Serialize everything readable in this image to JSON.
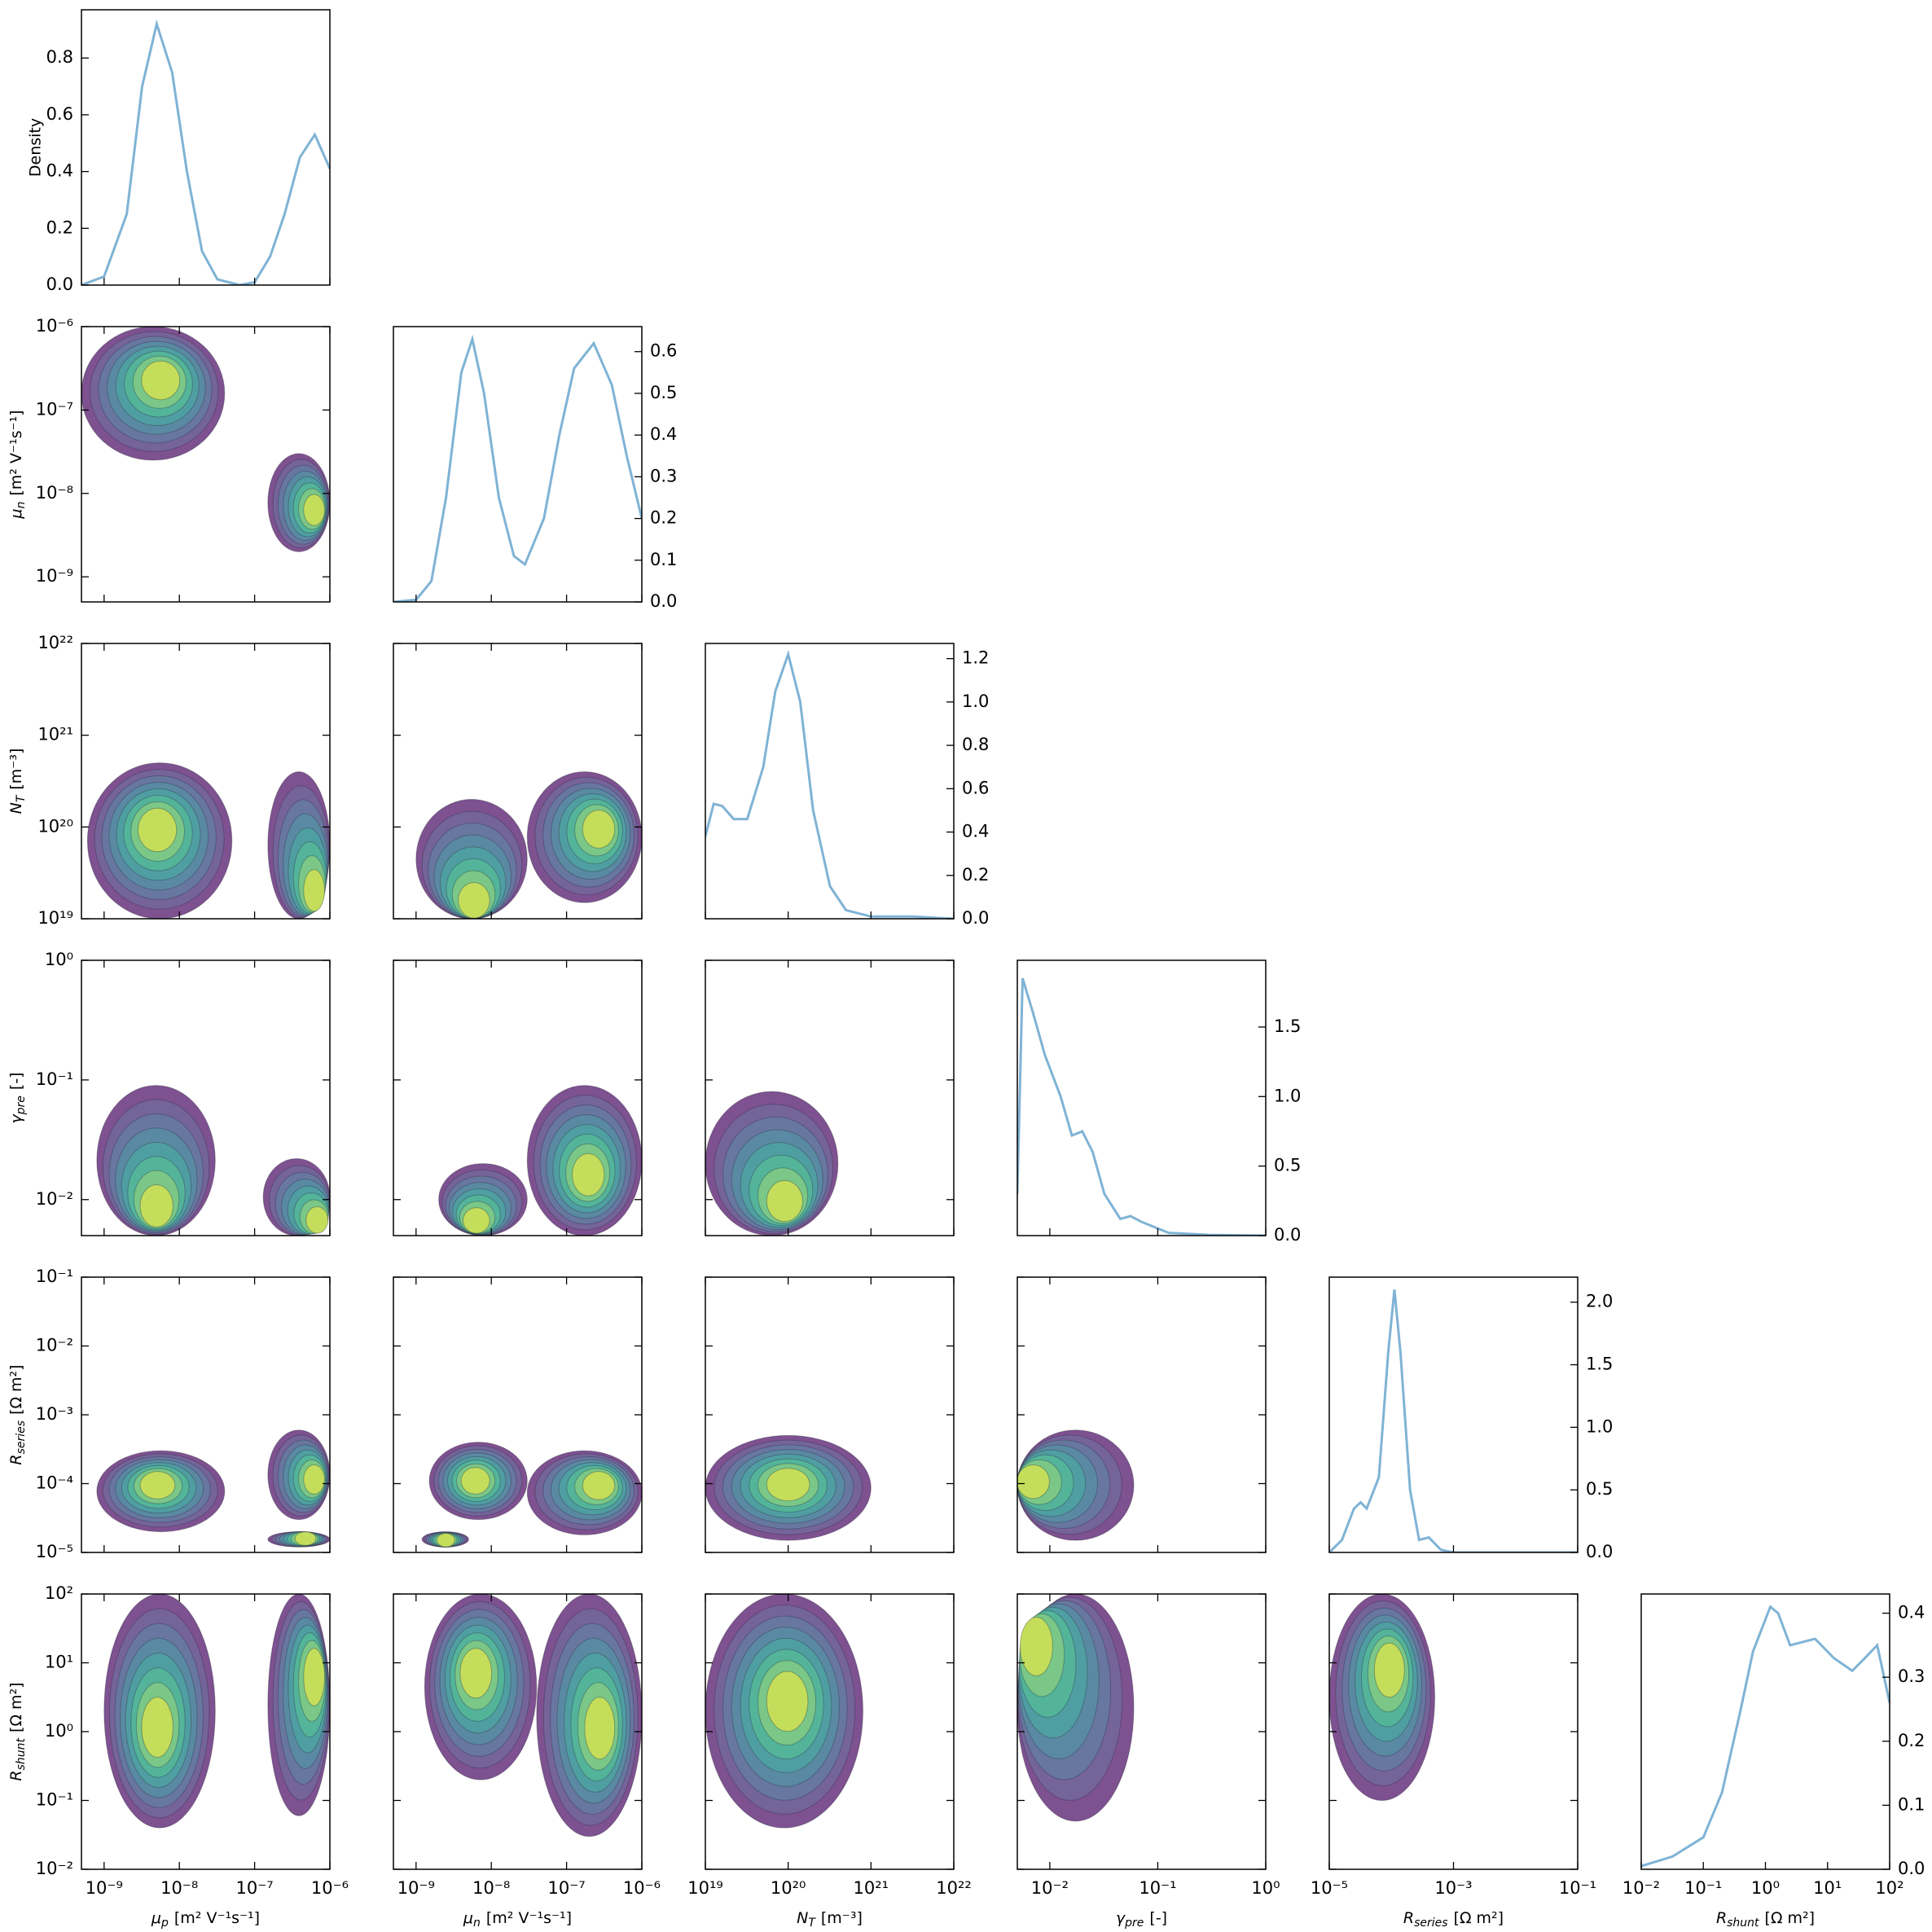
{
  "chart_data": {
    "type": "corner",
    "log_scale": true,
    "density_label": "Density",
    "line_color": "#7fb3d5",
    "contour_colors": [
      "#7e5190",
      "#74649a",
      "#6777a0",
      "#5a8aa3",
      "#4f9ea2",
      "#53b49a",
      "#7ac787",
      "#c4de5c"
    ],
    "variables": [
      {
        "symbol": "μ",
        "sub": "p",
        "unit": "[m² V⁻¹s⁻¹]",
        "lim": [
          5e-10,
          1e-06
        ],
        "ticks": [
          {
            "value": 1e-09,
            "label": "10⁻⁹"
          },
          {
            "value": 1e-08,
            "label": "10⁻⁸"
          },
          {
            "value": 1e-07,
            "label": "10⁻⁷"
          },
          {
            "value": 1e-06,
            "label": "10⁻⁶"
          }
        ]
      },
      {
        "symbol": "μ",
        "sub": "n",
        "unit": "[m² V⁻¹s⁻¹]",
        "lim": [
          5e-10,
          1e-06
        ],
        "ticks": [
          {
            "value": 1e-09,
            "label": "10⁻⁹"
          },
          {
            "value": 1e-08,
            "label": "10⁻⁸"
          },
          {
            "value": 1e-07,
            "label": "10⁻⁷"
          },
          {
            "value": 1e-06,
            "label": "10⁻⁶"
          }
        ]
      },
      {
        "symbol": "N",
        "sub": "T",
        "unit": "[m⁻³]",
        "lim": [
          1e+19,
          1e+22
        ],
        "ticks": [
          {
            "value": 1e+19,
            "label": "10¹⁹"
          },
          {
            "value": 1e+20,
            "label": "10²⁰"
          },
          {
            "value": 1e+21,
            "label": "10²¹"
          },
          {
            "value": 1e+22,
            "label": "10²²"
          }
        ]
      },
      {
        "symbol": "γ",
        "sub": "pre",
        "unit": "[-]",
        "lim": [
          0.005,
          1
        ],
        "ticks": [
          {
            "value": 0.01,
            "label": "10⁻²"
          },
          {
            "value": 0.1,
            "label": "10⁻¹"
          },
          {
            "value": 1,
            "label": "10⁰"
          }
        ]
      },
      {
        "symbol": "R",
        "sub": "series",
        "unit": "[Ω m²]",
        "lim": [
          1e-05,
          0.1
        ],
        "ticks": [
          {
            "value": 1e-05,
            "label": "10⁻⁵"
          },
          {
            "value": 0.0001,
            "label": "10⁻⁴"
          },
          {
            "value": 0.001,
            "label": "10⁻³"
          },
          {
            "value": 0.01,
            "label": "10⁻²"
          },
          {
            "value": 0.1,
            "label": "10⁻¹"
          }
        ],
        "xticks": [
          {
            "value": 1e-05,
            "label": "10⁻⁵"
          },
          {
            "value": 0.001,
            "label": "10⁻³"
          },
          {
            "value": 0.1,
            "label": "10⁻¹"
          }
        ]
      },
      {
        "symbol": "R",
        "sub": "shunt",
        "unit": "[Ω m²]",
        "lim": [
          0.01,
          100
        ],
        "ticks": [
          {
            "value": 0.01,
            "label": "10⁻²"
          },
          {
            "value": 0.1,
            "label": "10⁻¹"
          },
          {
            "value": 1,
            "label": "10⁰"
          },
          {
            "value": 10,
            "label": "10¹"
          },
          {
            "value": 100,
            "label": "10²"
          }
        ]
      }
    ],
    "diagonal": [
      {
        "x": [
          5e-10,
          1e-09,
          2e-09,
          3.2e-09,
          5e-09,
          8e-09,
          1.26e-08,
          2e-08,
          3.2e-08,
          6.3e-08,
          1e-07,
          1.6e-07,
          2.5e-07,
          4e-07,
          6.3e-07,
          1e-06
        ],
        "values": [
          0.0,
          0.03,
          0.25,
          0.7,
          0.92,
          0.75,
          0.4,
          0.12,
          0.02,
          0.0,
          0.01,
          0.1,
          0.25,
          0.45,
          0.53,
          0.41
        ],
        "ylim": [
          0,
          0.97
        ],
        "yticks": [
          {
            "value": 0,
            "label": "0.0"
          },
          {
            "value": 0.2,
            "label": "0.2"
          },
          {
            "value": 0.4,
            "label": "0.4"
          },
          {
            "value": 0.6,
            "label": "0.6"
          },
          {
            "value": 0.8,
            "label": "0.8"
          }
        ]
      },
      {
        "x": [
          5e-10,
          1e-09,
          1.6e-09,
          2.5e-09,
          4e-09,
          5.6e-09,
          8e-09,
          1.26e-08,
          2e-08,
          2.8e-08,
          5e-08,
          8e-08,
          1.26e-07,
          2.3e-07,
          4e-07,
          6.3e-07,
          1e-06
        ],
        "values": [
          0.0,
          0.005,
          0.05,
          0.25,
          0.55,
          0.63,
          0.5,
          0.25,
          0.11,
          0.09,
          0.2,
          0.4,
          0.56,
          0.62,
          0.52,
          0.35,
          0.2
        ],
        "ylim": [
          0,
          0.66
        ],
        "yticks": [
          {
            "value": 0,
            "label": "0.0"
          },
          0.1,
          0.2,
          0.3,
          0.4,
          0.5,
          0.6
        ]
      },
      {
        "x": [
          1e+19,
          1.26e+19,
          1.6e+19,
          2.2e+19,
          3.2e+19,
          5e+19,
          7e+19,
          1e+20,
          1.4e+20,
          2e+20,
          3.2e+20,
          5e+20,
          1e+21,
          3.2e+21,
          1e+22
        ],
        "values": [
          0.38,
          0.53,
          0.52,
          0.46,
          0.46,
          0.7,
          1.05,
          1.22,
          1.0,
          0.5,
          0.15,
          0.04,
          0.01,
          0.01,
          0.0
        ],
        "ylim": [
          0,
          1.27
        ],
        "yticks": [
          {
            "value": 0,
            "label": "0.0"
          },
          0.2,
          0.4,
          0.6,
          0.8,
          {
            "value": 1,
            "label": "1.0"
          },
          1.2
        ]
      },
      {
        "x": [
          0.005,
          0.0056,
          0.007,
          0.009,
          0.0126,
          0.016,
          0.02,
          0.025,
          0.032,
          0.045,
          0.056,
          0.07,
          0.126,
          0.3,
          1
        ],
        "values": [
          0.3,
          1.85,
          1.6,
          1.3,
          1.0,
          0.72,
          0.75,
          0.6,
          0.3,
          0.12,
          0.14,
          0.1,
          0.02,
          0.005,
          0.0
        ],
        "ylim": [
          0,
          1.98
        ],
        "yticks": [
          {
            "value": 0,
            "label": "0.0"
          },
          0.5,
          {
            "value": 1,
            "label": "1.0"
          },
          1.5
        ]
      },
      {
        "x": [
          1e-05,
          1.6e-05,
          2.5e-05,
          3.2e-05,
          4e-05,
          6.3e-05,
          8.9e-05,
          0.000112,
          0.00014,
          0.0002,
          0.00028,
          0.0004,
          0.00063,
          0.001,
          0.1
        ],
        "values": [
          0.0,
          0.1,
          0.35,
          0.4,
          0.35,
          0.6,
          1.6,
          2.1,
          1.6,
          0.5,
          0.1,
          0.12,
          0.02,
          0.0,
          0.0
        ],
        "ylim": [
          0,
          2.2
        ],
        "yticks": [
          {
            "value": 0,
            "label": "0.0"
          },
          0.5,
          {
            "value": 1,
            "label": "1.0"
          },
          1.5,
          {
            "value": 2,
            "label": "2.0"
          }
        ]
      },
      {
        "x": [
          0.01,
          0.032,
          0.1,
          0.2,
          0.4,
          0.63,
          1.2,
          1.6,
          2.5,
          6.3,
          12.6,
          25,
          40,
          63,
          100
        ],
        "values": [
          0.005,
          0.02,
          0.05,
          0.12,
          0.25,
          0.34,
          0.41,
          0.4,
          0.35,
          0.36,
          0.33,
          0.31,
          0.33,
          0.35,
          0.26
        ],
        "ylim": [
          0,
          0.43
        ],
        "yticks": [
          {
            "value": 0,
            "label": "0.0"
          },
          0.1,
          0.2,
          0.3,
          0.4
        ]
      }
    ],
    "pairs": [
      [],
      [
        [
          {
            "x": [
              5e-10,
              4e-08
            ],
            "y": [
              2.5e-08,
              1e-06
            ],
            "peak": [
              6e-09,
              2.5e-07
            ]
          },
          {
            "x": [
              1.5e-07,
              1e-06
            ],
            "y": [
              2e-09,
              3e-08
            ],
            "peak": [
              7e-07,
              6e-09
            ]
          }
        ]
      ],
      [
        [
          {
            "x": [
              6e-10,
              5e-08
            ],
            "y": [
              1e+19,
              5e+20
            ],
            "peak": [
              5e-09,
              1e+20
            ]
          },
          {
            "x": [
              1.5e-07,
              1e-06
            ],
            "y": [
              1e+19,
              4e+20
            ],
            "peak": [
              7e-07,
              1.5e+19
            ]
          }
        ],
        [
          {
            "x": [
              1e-09,
              3e-08
            ],
            "y": [
              1e+19,
              2e+20
            ],
            "peak": [
              6e-09,
              1.2e+19
            ]
          },
          {
            "x": [
              3e-08,
              1e-06
            ],
            "y": [
              1.5e+19,
              4e+20
            ],
            "peak": [
              3e-07,
              1e+20
            ]
          }
        ]
      ],
      [
        [
          {
            "x": [
              8e-10,
              3e-08
            ],
            "y": [
              0.005,
              0.09
            ],
            "peak": [
              5e-09,
              0.007
            ]
          },
          {
            "x": [
              1.3e-07,
              1e-06
            ],
            "y": [
              0.005,
              0.022
            ],
            "peak": [
              8e-07,
              0.006
            ]
          }
        ],
        [
          {
            "x": [
              2e-09,
              3e-08
            ],
            "y": [
              0.005,
              0.02
            ],
            "peak": [
              6e-09,
              0.006
            ]
          },
          {
            "x": [
              3e-08,
              1e-06
            ],
            "y": [
              0.005,
              0.09
            ],
            "peak": [
              2e-07,
              0.015
            ]
          }
        ],
        [
          {
            "x": [
              1e+19,
              4e+20
            ],
            "y": [
              0.005,
              0.08
            ],
            "peak": [
              1e+20,
              0.008
            ]
          }
        ]
      ],
      [
        [
          {
            "x": [
              8e-10,
              4e-08
            ],
            "y": [
              2e-05,
              0.0003
            ],
            "peak": [
              5e-09,
              0.0001
            ]
          },
          {
            "x": [
              1.5e-07,
              1e-06
            ],
            "y": [
              3e-05,
              0.0006
            ],
            "peak": [
              7e-07,
              0.00011
            ]
          },
          {
            "x": [
              1.5e-07,
              1e-06
            ],
            "y": [
              1.2e-05,
              2e-05
            ],
            "peak": [
              5e-07,
              1.6e-05
            ]
          }
        ],
        [
          {
            "x": [
              1.5e-09,
              3e-08
            ],
            "y": [
              3e-05,
              0.0004
            ],
            "peak": [
              6e-09,
              0.00011
            ]
          },
          {
            "x": [
              3e-08,
              1e-06
            ],
            "y": [
              1.8e-05,
              0.0003
            ],
            "peak": [
              3e-07,
              0.0001
            ]
          },
          {
            "x": [
              1.2e-09,
              5e-09
            ],
            "y": [
              1.2e-05,
              2e-05
            ],
            "peak": [
              2.5e-09,
              1.5e-05
            ]
          }
        ],
        [
          {
            "x": [
              1e+19,
              1e+21
            ],
            "y": [
              1.5e-05,
              0.0005
            ],
            "peak": [
              1e+20,
              0.0001
            ]
          }
        ],
        [
          {
            "x": [
              0.005,
              0.06
            ],
            "y": [
              1.5e-05,
              0.0006
            ],
            "peak": [
              0.0055,
              0.00011
            ]
          }
        ]
      ],
      [
        [
          {
            "x": [
              1e-09,
              3e-08
            ],
            "y": [
              0.04,
              100
            ],
            "peak": [
              5e-09,
              1
            ]
          },
          {
            "x": [
              1.5e-07,
              1e-06
            ],
            "y": [
              0.06,
              100
            ],
            "peak": [
              7e-07,
              8
            ]
          }
        ],
        [
          {
            "x": [
              1.3e-09,
              4e-08
            ],
            "y": [
              0.2,
              100
            ],
            "peak": [
              6e-09,
              8
            ]
          },
          {
            "x": [
              4e-08,
              1e-06
            ],
            "y": [
              0.03,
              100
            ],
            "peak": [
              3e-07,
              1
            ]
          }
        ],
        [
          {
            "x": [
              1e+19,
              8e+20
            ],
            "y": [
              0.04,
              100
            ],
            "peak": [
              1e+20,
              3
            ]
          }
        ],
        [
          {
            "x": [
              0.005,
              0.06
            ],
            "y": [
              0.05,
              100
            ],
            "peak": [
              0.006,
              30
            ]
          }
        ],
        [
          {
            "x": [
              1e-05,
              0.0005
            ],
            "y": [
              0.1,
              100
            ],
            "peak": [
              0.0001,
              10
            ]
          }
        ]
      ]
    ]
  }
}
